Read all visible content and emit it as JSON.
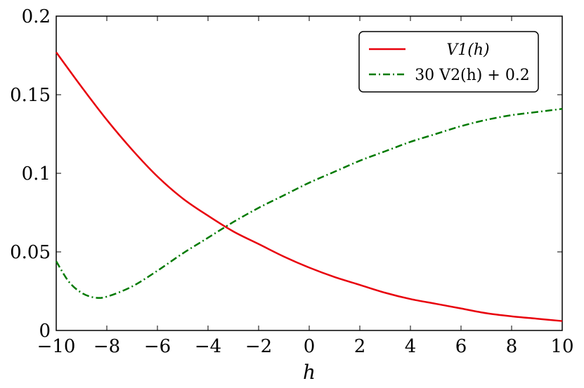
{
  "chart_data": {
    "type": "line",
    "title": "",
    "xlabel": "h",
    "ylabel": "",
    "xlim": [
      -10,
      10
    ],
    "ylim": [
      0,
      0.2
    ],
    "x_ticks": [
      -10,
      -8,
      -6,
      -4,
      -2,
      0,
      2,
      4,
      6,
      8,
      10
    ],
    "x_tick_labels": [
      "−10",
      "−8",
      "−6",
      "−4",
      "−2",
      "0",
      "2",
      "4",
      "6",
      "8",
      "10"
    ],
    "y_ticks": [
      0,
      0.05,
      0.1,
      0.15,
      0.2
    ],
    "y_tick_labels": [
      "0",
      "0.05",
      "0.1",
      "0.15",
      "0.2"
    ],
    "grid": false,
    "legend_position": "top-right",
    "series": [
      {
        "name": "V1(h)",
        "color": "#e8000b",
        "style": "solid",
        "x": [
          -10,
          -9,
          -8,
          -7,
          -6,
          -5,
          -4,
          -3,
          -2,
          -1,
          0,
          1,
          2,
          3,
          4,
          5,
          6,
          7,
          8,
          9,
          10
        ],
        "y": [
          0.177,
          0.155,
          0.134,
          0.115,
          0.098,
          0.084,
          0.073,
          0.063,
          0.055,
          0.047,
          0.04,
          0.034,
          0.029,
          0.024,
          0.02,
          0.017,
          0.014,
          0.011,
          0.009,
          0.0075,
          0.006
        ]
      },
      {
        "name": "30 V2(h) + 0.2",
        "color": "#007a00",
        "style": "dashdot",
        "x": [
          -10,
          -9.5,
          -9,
          -8.5,
          -8,
          -7,
          -6,
          -5,
          -4,
          -3,
          -2,
          -1,
          0,
          1,
          2,
          3,
          4,
          5,
          6,
          7,
          8,
          9,
          10
        ],
        "y": [
          0.044,
          0.031,
          0.024,
          0.021,
          0.0215,
          0.028,
          0.038,
          0.049,
          0.059,
          0.069,
          0.078,
          0.086,
          0.094,
          0.101,
          0.108,
          0.114,
          0.12,
          0.125,
          0.13,
          0.134,
          0.137,
          0.139,
          0.141
        ]
      }
    ]
  }
}
